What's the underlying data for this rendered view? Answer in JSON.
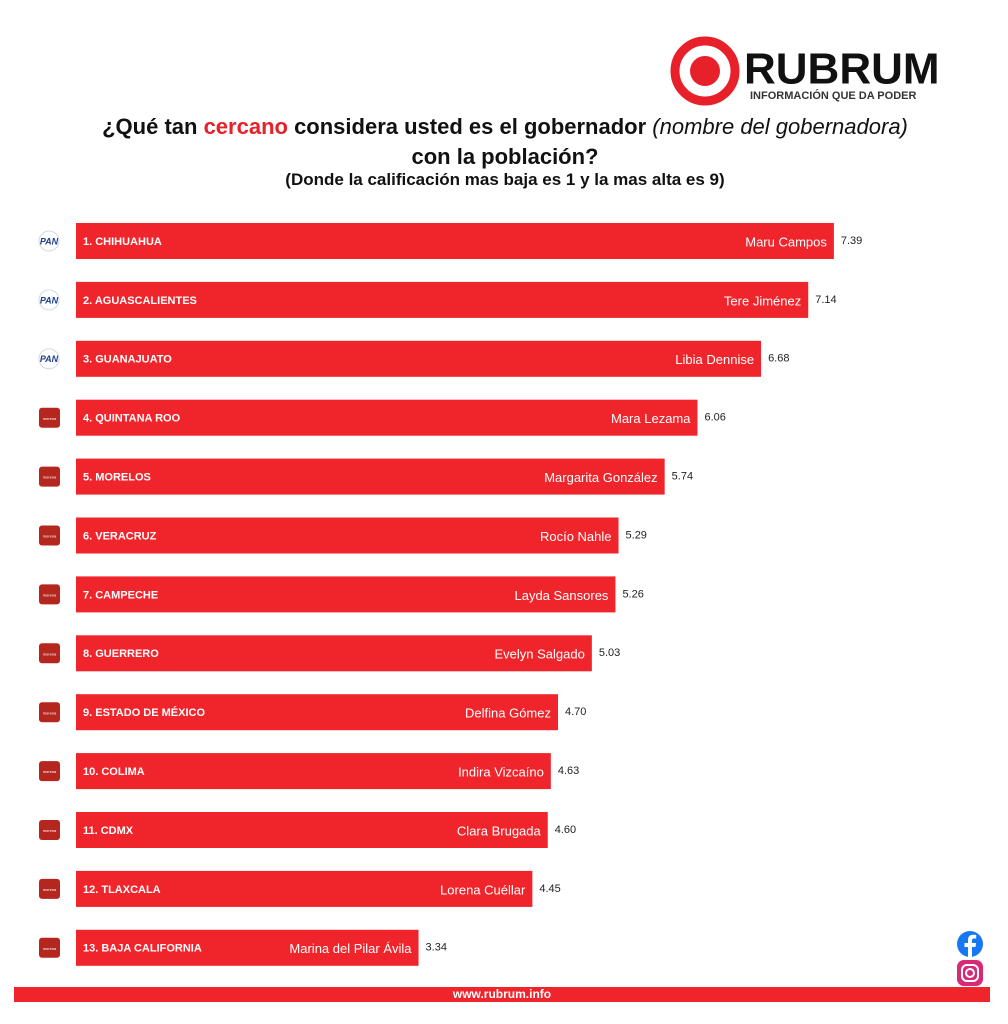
{
  "brand": {
    "name": "RUBRUM",
    "tagline": "INFORMACIÓN QUE DA PODER",
    "website": "www.rubrum.info"
  },
  "chart_data": {
    "type": "bar",
    "orientation": "horizontal",
    "title": [
      "¿Qué tan ",
      "cercano",
      " considera usted es el gobernador ",
      "(nombre del gobernadora)",
      " con la población?"
    ],
    "title_styles": [
      "normal",
      "accent",
      "normal",
      "italic",
      "normal"
    ],
    "subtitle": "(Donde la calificación mas baja es 1 y la mas alta es 9)",
    "categories": [
      "1. CHIHUAHUA",
      "2. AGUASCALIENTES",
      "3. GUANAJUATO",
      "4. QUINTANA ROO",
      "5. MORELOS",
      "6. VERACRUZ",
      "7. CAMPECHE",
      "8. GUERRERO",
      "9. ESTADO DE MÉXICO",
      "10. COLIMA",
      "11. CDMX",
      "12. TLAXCALA",
      "13. BAJA CALIFORNIA"
    ],
    "governors": [
      "Maru Campos",
      "Tere Jiménez",
      "Libia Dennise",
      "Mara Lezama",
      "Margarita González",
      "Rocío Nahle",
      "Layda Sansores",
      "Evelyn Salgado",
      "Delfina Gómez",
      "Indira Vizcaíno",
      "Clara Brugada",
      "Lorena Cuéllar",
      "Marina del Pilar Ávila"
    ],
    "parties": [
      "PAN",
      "PAN",
      "PAN",
      "morena",
      "morena",
      "morena",
      "morena",
      "morena",
      "morena",
      "morena",
      "morena",
      "morena",
      "morena"
    ],
    "values": [
      7.39,
      7.14,
      6.68,
      6.06,
      5.74,
      5.29,
      5.26,
      5.03,
      4.7,
      4.63,
      4.6,
      4.45,
      3.34
    ],
    "value_labels": [
      "7.39",
      "7.14",
      "6.68",
      "6.06",
      "5.74",
      "5.29",
      "5.26",
      "5.03",
      "4.70",
      "4.63",
      "4.60",
      "4.45",
      "3.34"
    ],
    "color": "#f0242b",
    "xlim": [
      0,
      9
    ]
  }
}
